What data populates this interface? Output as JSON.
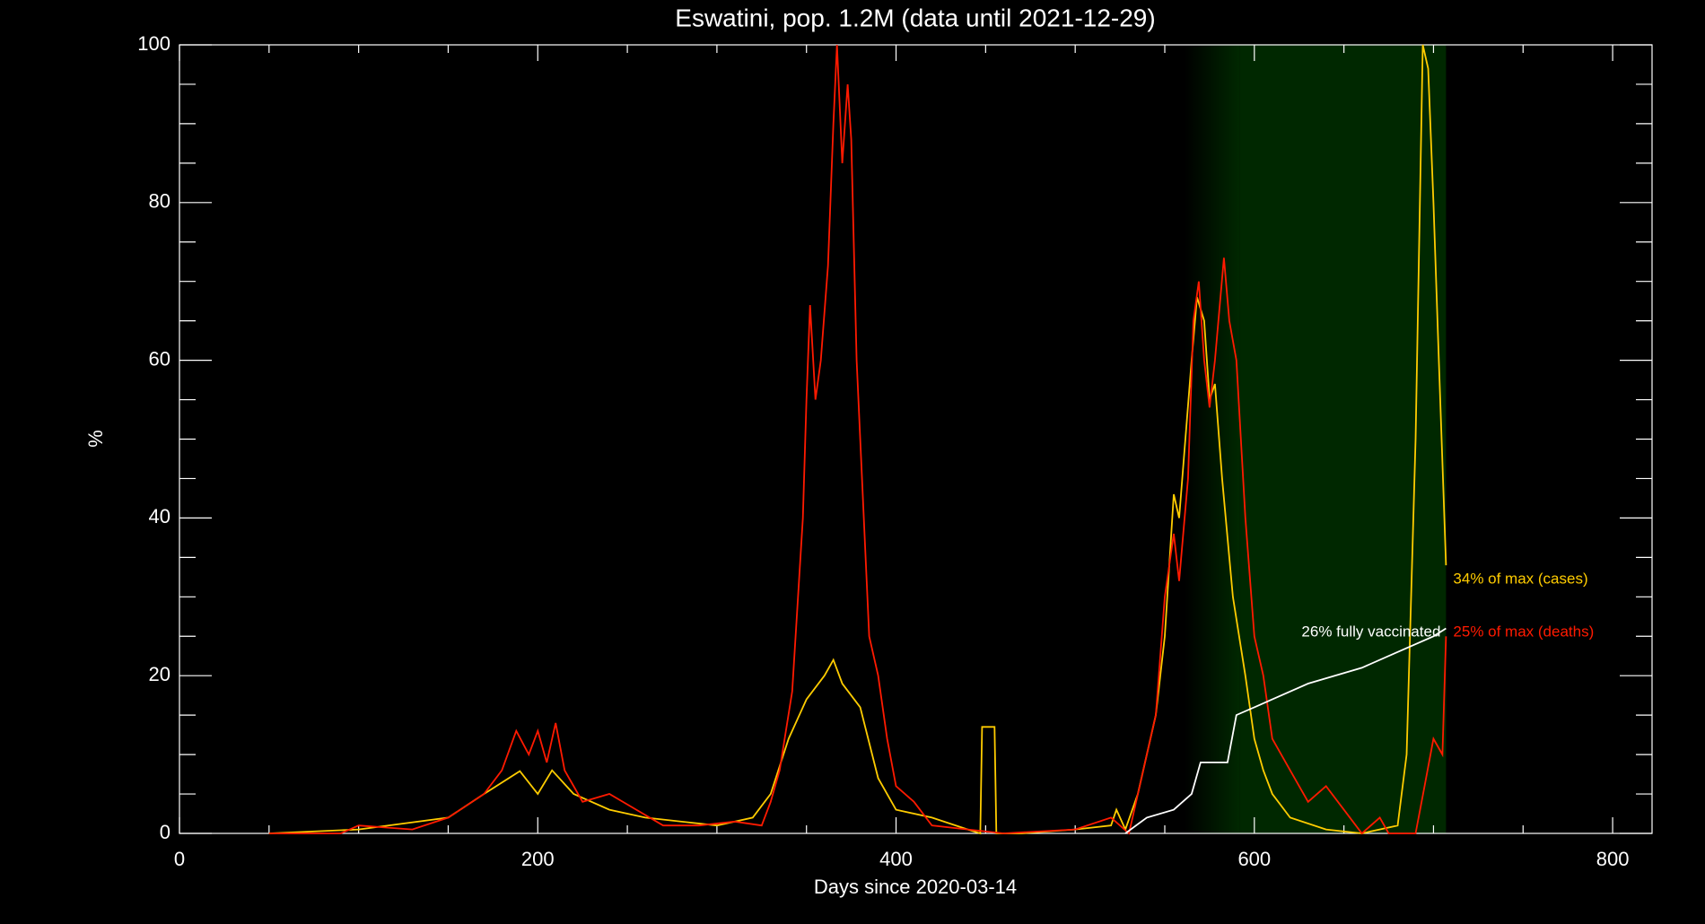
{
  "chart_data": {
    "type": "line",
    "title": "Eswatini, pop. 1.2M (data until 2021-12-29)",
    "x_label": "Days since 2020-03-14",
    "y_label": "%",
    "xlim": [
      0,
      822
    ],
    "ylim": [
      0,
      100
    ],
    "xticks": [
      0,
      200,
      400,
      600,
      800
    ],
    "yticks": [
      0,
      20,
      40,
      60,
      80,
      100
    ],
    "xticks_minor": [
      50,
      100,
      150,
      250,
      300,
      350,
      450,
      500,
      550,
      650,
      700,
      750
    ],
    "yticks_minor": [
      5,
      10,
      15,
      25,
      30,
      35,
      45,
      50,
      55,
      65,
      70,
      75,
      85,
      90,
      95
    ],
    "shaded_region": {
      "fade_start": 561,
      "start": 592,
      "end": 707,
      "color": "#002800"
    },
    "series": [
      {
        "name": "cases",
        "color": "#ffcc00",
        "x": [
          50,
          100,
          150,
          170,
          190,
          200,
          208,
          220,
          240,
          260,
          300,
          320,
          330,
          340,
          350,
          360,
          365,
          370,
          380,
          390,
          400,
          420,
          440,
          447,
          448,
          455,
          456,
          470,
          500,
          520,
          523,
          528,
          535,
          545,
          550,
          555,
          558,
          565,
          568,
          572,
          575,
          578,
          582,
          588,
          595,
          600,
          605,
          610,
          620,
          640,
          660,
          680,
          685,
          690,
          694,
          697,
          700,
          703,
          707
        ],
        "values": [
          0,
          0.5,
          2,
          5,
          7.9,
          5,
          8,
          5,
          3,
          2,
          1,
          2,
          5,
          12,
          17,
          20,
          22,
          19,
          16,
          7,
          3,
          2,
          0.5,
          0,
          13.5,
          13.5,
          0,
          0,
          0.5,
          1,
          3,
          0.5,
          5,
          15,
          25,
          43,
          40,
          60,
          68,
          65,
          55,
          57,
          45,
          30,
          20,
          12,
          8,
          5,
          2,
          0.5,
          0,
          1,
          10,
          50,
          100,
          97,
          80,
          60,
          34
        ]
      },
      {
        "name": "deaths",
        "color": "#ff1a00",
        "x": [
          50,
          90,
          100,
          130,
          150,
          170,
          180,
          188,
          195,
          200,
          205,
          210,
          215,
          225,
          240,
          255,
          270,
          290,
          310,
          325,
          330,
          335,
          342,
          348,
          350,
          352,
          355,
          358,
          362,
          365,
          367,
          370,
          373,
          375,
          378,
          382,
          385,
          390,
          395,
          400,
          410,
          420,
          440,
          460,
          500,
          520,
          530,
          540,
          545,
          550,
          555,
          558,
          563,
          566,
          569,
          572,
          575,
          578,
          583,
          586,
          590,
          595,
          600,
          605,
          610,
          620,
          630,
          640,
          650,
          660,
          670,
          675,
          690,
          695,
          700,
          705,
          707
        ],
        "values": [
          0,
          0,
          1,
          0.5,
          2,
          5,
          8,
          13,
          10,
          13,
          9,
          14,
          8,
          4,
          5,
          3,
          1,
          1,
          1.5,
          1,
          4,
          8,
          18,
          40,
          55,
          67,
          55,
          60,
          72,
          90,
          100,
          85,
          95,
          88,
          60,
          40,
          25,
          20,
          12,
          6,
          4,
          1,
          0.5,
          0,
          0.5,
          2,
          0,
          10,
          15,
          30,
          38,
          32,
          45,
          65,
          70,
          60,
          54,
          60,
          73,
          65,
          60,
          40,
          25,
          20,
          12,
          8,
          4,
          6,
          3,
          0,
          2,
          0,
          0,
          6,
          12,
          10,
          25
        ]
      },
      {
        "name": "vaccinated",
        "color": "#ffffff",
        "x": [
          528,
          540,
          555,
          565,
          570,
          585,
          590,
          600,
          610,
          630,
          660,
          680,
          700,
          707
        ],
        "values": [
          0,
          2,
          3,
          5,
          9,
          9,
          15,
          16,
          17,
          19,
          21,
          23,
          25,
          26
        ]
      }
    ],
    "annotations": [
      {
        "text": "34% of max (cases)",
        "color": "#ffcc00"
      },
      {
        "text": "25% of max (deaths)",
        "color": "#ff1a00"
      },
      {
        "text": "26% fully vaccinated",
        "color": "#ffffff"
      }
    ]
  }
}
